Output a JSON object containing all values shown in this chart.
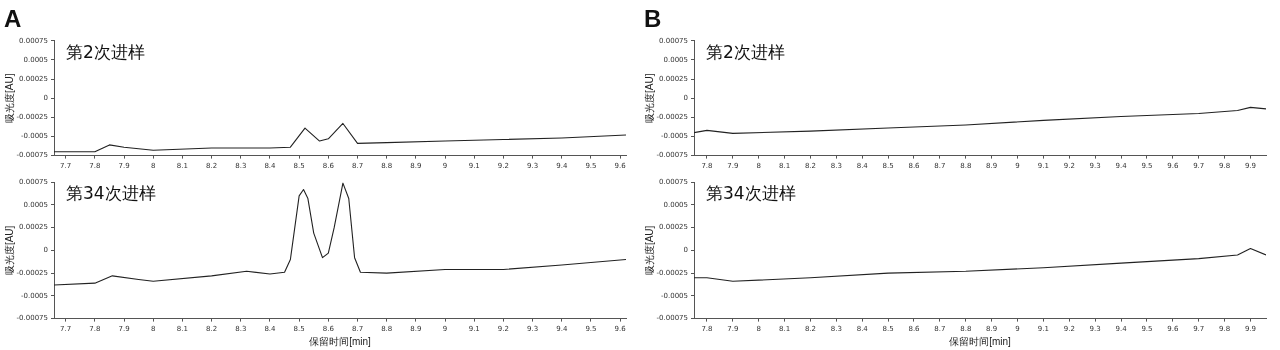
{
  "chart_data": [
    {
      "type": "line",
      "title": "A",
      "ylabel": "吸光度[AU]",
      "annotations": [
        "第2次进样"
      ],
      "xlim": [
        7.66,
        9.62
      ],
      "xticks": [
        7.7,
        7.8,
        7.9,
        8,
        8.1,
        8.2,
        8.3,
        8.4,
        8.5,
        8.6,
        8.7,
        8.8,
        8.9,
        9,
        9.1,
        9.2,
        9.3,
        9.4,
        9.5,
        9.6
      ],
      "ylim": [
        -0.00075,
        0.00075
      ],
      "yticks": [
        -0.00075,
        -0.0005,
        -0.00025,
        0,
        0.00025,
        0.0005,
        0.00075
      ],
      "grid": false,
      "legend": false,
      "marker": "none",
      "line_style": "solid",
      "series": [
        {
          "color": "#222222",
          "x": [
            7.66,
            7.8,
            7.85,
            7.9,
            8.0,
            8.2,
            8.4,
            8.47,
            8.52,
            8.57,
            8.6,
            8.65,
            8.7,
            8.8,
            9.0,
            9.2,
            9.4,
            9.62
          ],
          "values": [
            -0.0007,
            -0.0007,
            -0.00061,
            -0.00064,
            -0.00068,
            -0.00065,
            -0.00065,
            -0.00064,
            -0.00039,
            -0.00056,
            -0.00053,
            -0.00033,
            -0.00059,
            -0.00058,
            -0.00056,
            -0.00054,
            -0.00052,
            -0.00048
          ]
        }
      ]
    },
    {
      "type": "line",
      "title": "B",
      "ylabel": "吸光度[AU]",
      "annotations": [
        "第2次进样"
      ],
      "xlim": [
        7.75,
        9.96
      ],
      "xticks": [
        7.8,
        7.9,
        8,
        8.1,
        8.2,
        8.3,
        8.4,
        8.5,
        8.6,
        8.7,
        8.8,
        8.9,
        9,
        9.1,
        9.2,
        9.3,
        9.4,
        9.5,
        9.6,
        9.7,
        9.8,
        9.9
      ],
      "ylim": [
        -0.00075,
        0.00075
      ],
      "yticks": [
        -0.00075,
        -0.0005,
        -0.00025,
        0,
        0.00025,
        0.0005,
        0.00075
      ],
      "grid": false,
      "legend": false,
      "marker": "none",
      "line_style": "solid",
      "series": [
        {
          "color": "#222222",
          "x": [
            7.75,
            7.8,
            7.9,
            8.2,
            8.5,
            8.8,
            9.1,
            9.4,
            9.7,
            9.85,
            9.9,
            9.96
          ],
          "values": [
            -0.00045,
            -0.00042,
            -0.00046,
            -0.00043,
            -0.00039,
            -0.00035,
            -0.00029,
            -0.00024,
            -0.0002,
            -0.00016,
            -0.00012,
            -0.00014
          ]
        }
      ]
    },
    {
      "type": "line",
      "xlabel": "保留时间[min]",
      "ylabel": "吸光度[AU]",
      "annotations": [
        "第34次进样"
      ],
      "xlim": [
        7.66,
        9.62
      ],
      "xticks": [
        7.7,
        7.8,
        7.9,
        8,
        8.1,
        8.2,
        8.3,
        8.4,
        8.5,
        8.6,
        8.7,
        8.8,
        8.9,
        9,
        9.1,
        9.2,
        9.3,
        9.4,
        9.5,
        9.6
      ],
      "ylim": [
        -0.00075,
        0.00075
      ],
      "yticks": [
        -0.00075,
        -0.0005,
        -0.00025,
        0,
        0.00025,
        0.0005,
        0.00075
      ],
      "grid": false,
      "legend": false,
      "marker": "none",
      "line_style": "solid",
      "series": [
        {
          "color": "#222222",
          "x": [
            7.66,
            7.8,
            7.86,
            7.95,
            8.0,
            8.2,
            8.32,
            8.4,
            8.45,
            8.47,
            8.5,
            8.515,
            8.53,
            8.55,
            8.58,
            8.6,
            8.62,
            8.65,
            8.67,
            8.69,
            8.71,
            8.8,
            9.0,
            9.2,
            9.4,
            9.62
          ],
          "values": [
            -0.00038,
            -0.00036,
            -0.00028,
            -0.00032,
            -0.00034,
            -0.00028,
            -0.00023,
            -0.00026,
            -0.00024,
            -0.0001,
            0.0006,
            0.00067,
            0.00057,
            0.00019,
            -8e-05,
            -3e-05,
            0.00025,
            0.00074,
            0.00057,
            -8e-05,
            -0.00024,
            -0.00025,
            -0.00021,
            -0.00021,
            -0.00016,
            -0.0001
          ]
        }
      ]
    },
    {
      "type": "line",
      "xlabel": "保留时间[min]",
      "ylabel": "吸光度[AU]",
      "annotations": [
        "第34次进样"
      ],
      "xlim": [
        7.75,
        9.96
      ],
      "xticks": [
        7.8,
        7.9,
        8,
        8.1,
        8.2,
        8.3,
        8.4,
        8.5,
        8.6,
        8.7,
        8.8,
        8.9,
        9,
        9.1,
        9.2,
        9.3,
        9.4,
        9.5,
        9.6,
        9.7,
        9.8,
        9.9
      ],
      "ylim": [
        -0.00075,
        0.00075
      ],
      "yticks": [
        -0.00075,
        -0.0005,
        -0.00025,
        0,
        0.00025,
        0.0005,
        0.00075
      ],
      "grid": false,
      "legend": false,
      "marker": "none",
      "line_style": "solid",
      "series": [
        {
          "color": "#222222",
          "x": [
            7.75,
            7.8,
            7.9,
            8.2,
            8.5,
            8.8,
            9.1,
            9.4,
            9.7,
            9.85,
            9.9,
            9.96
          ],
          "values": [
            -0.0003,
            -0.0003,
            -0.00034,
            -0.0003,
            -0.00025,
            -0.00023,
            -0.00019,
            -0.00014,
            -9e-05,
            -5e-05,
            2e-05,
            -5e-05
          ]
        }
      ]
    }
  ]
}
